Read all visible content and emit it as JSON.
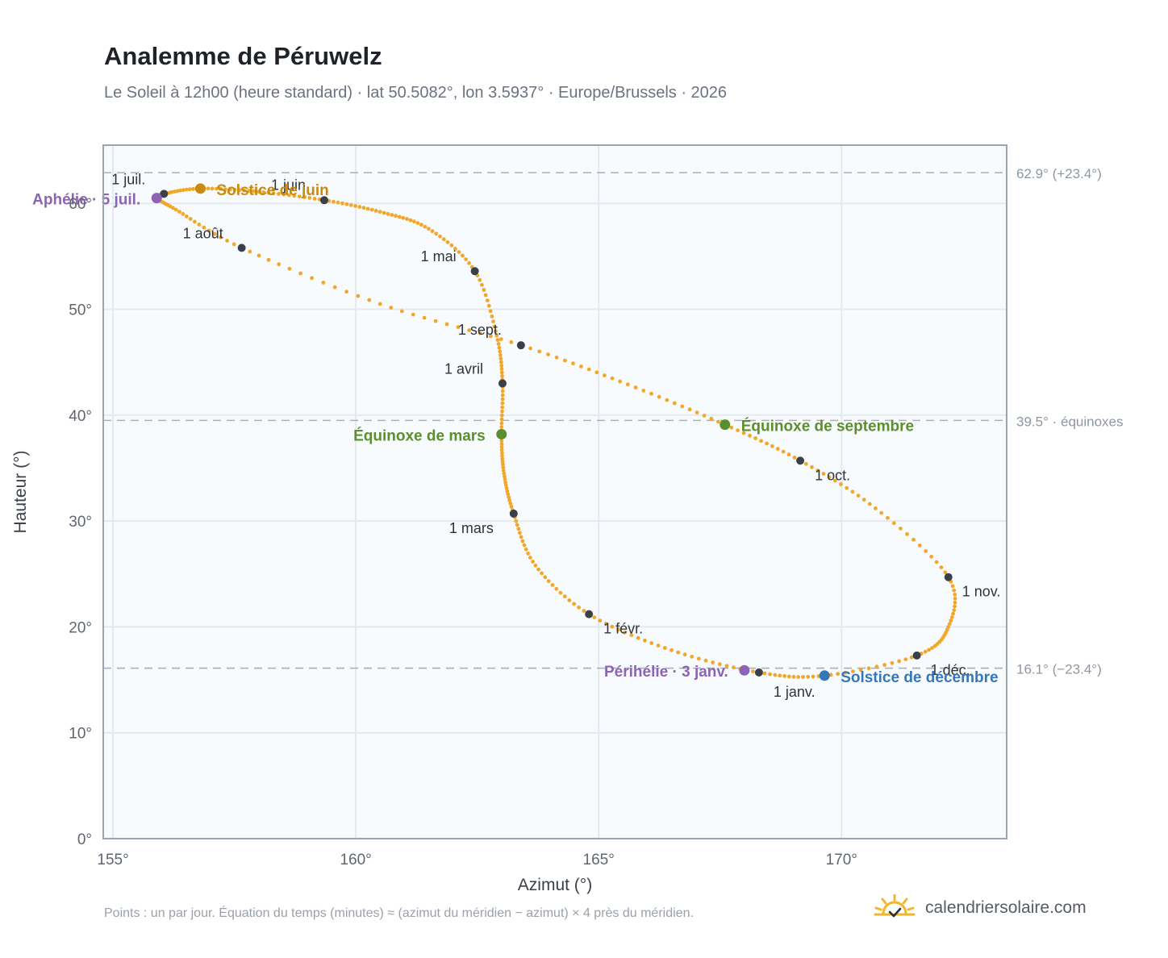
{
  "header": {
    "title": "Analemme de Péruwelz",
    "subtitle": "Le Soleil à 12h00 (heure standard) · lat 50.5082°, lon 3.5937° · Europe/Brussels · 2026"
  },
  "footer": {
    "note": "Points : un par jour. Équation du temps (minutes) ≈ (azimut du méridien − azimut) × 4 près du méridien.",
    "brand": "calendriersolaire.com"
  },
  "colors": {
    "curve": "#f2a72a",
    "month": "#3a3f4a",
    "aphelion": "#8d63b5",
    "june": "#c98a12",
    "equinox": "#5b8f2e",
    "december": "#3677b8",
    "refline": "#a8b0ba",
    "plot_bg": "#f8fbfd",
    "grid": "#e4e9ef",
    "frame": "#9aa4b0"
  },
  "chart_data": {
    "type": "scatter",
    "xlabel": "Azimut (°)",
    "ylabel": "Hauteur (°)",
    "xlim": [
      154.8,
      173.4
    ],
    "ylim": [
      0,
      65.5
    ],
    "xticks": [
      155,
      160,
      165,
      170
    ],
    "xtick_labels": [
      "155°",
      "160°",
      "165°",
      "170°"
    ],
    "yticks": [
      0,
      10,
      20,
      30,
      40,
      50,
      60
    ],
    "ytick_labels": [
      "0°",
      "10°",
      "20°",
      "30°",
      "40°",
      "50°",
      "60°"
    ],
    "grid": true,
    "reference_lines": [
      {
        "y": 62.9,
        "label": "62.9° (+23.4°)"
      },
      {
        "y": 39.5,
        "label": "39.5° · équinoxes"
      },
      {
        "y": 16.1,
        "label": "16.1° (−23.4°)"
      }
    ],
    "analemma_knots": [
      {
        "x": 168.3,
        "y": 15.7
      },
      {
        "x": 166.5,
        "y": 17.8
      },
      {
        "x": 164.8,
        "y": 21.2
      },
      {
        "x": 163.7,
        "y": 25.8
      },
      {
        "x": 163.25,
        "y": 30.7
      },
      {
        "x": 163.05,
        "y": 34.5
      },
      {
        "x": 163.0,
        "y": 38.2
      },
      {
        "x": 163.02,
        "y": 43.0
      },
      {
        "x": 162.9,
        "y": 47.5
      },
      {
        "x": 162.45,
        "y": 53.6
      },
      {
        "x": 161.5,
        "y": 57.6
      },
      {
        "x": 160.5,
        "y": 59.2
      },
      {
        "x": 159.35,
        "y": 60.3
      },
      {
        "x": 158.0,
        "y": 61.1
      },
      {
        "x": 156.8,
        "y": 61.4
      },
      {
        "x": 156.05,
        "y": 60.9
      },
      {
        "x": 155.9,
        "y": 60.5
      },
      {
        "x": 156.3,
        "y": 59.4
      },
      {
        "x": 157.65,
        "y": 55.8
      },
      {
        "x": 160.5,
        "y": 50.5
      },
      {
        "x": 163.4,
        "y": 46.6
      },
      {
        "x": 165.6,
        "y": 42.9
      },
      {
        "x": 167.6,
        "y": 39.1
      },
      {
        "x": 169.15,
        "y": 35.7
      },
      {
        "x": 170.7,
        "y": 31.2
      },
      {
        "x": 172.2,
        "y": 24.7
      },
      {
        "x": 172.2,
        "y": 20.0
      },
      {
        "x": 171.55,
        "y": 17.3
      },
      {
        "x": 169.65,
        "y": 15.4
      },
      {
        "x": 168.3,
        "y": 15.7
      }
    ],
    "month_markers": [
      {
        "label": "1 janv.",
        "x": 168.3,
        "y": 15.7,
        "dx": 18,
        "dy": 30
      },
      {
        "label": "1 févr.",
        "x": 164.8,
        "y": 21.2,
        "dx": 18,
        "dy": 24
      },
      {
        "label": "1 mars",
        "x": 163.25,
        "y": 30.7,
        "dx": -80,
        "dy": 24
      },
      {
        "label": "1 avril",
        "x": 163.02,
        "y": 43.0,
        "dx": -72,
        "dy": -12
      },
      {
        "label": "1 mai",
        "x": 162.45,
        "y": 53.6,
        "dx": -67,
        "dy": -12
      },
      {
        "label": "1 juin",
        "x": 159.35,
        "y": 60.3,
        "dx": -66,
        "dy": -13
      },
      {
        "label": "1 juil.",
        "x": 156.05,
        "y": 60.9,
        "dx": -65,
        "dy": -12
      },
      {
        "label": "1 août",
        "x": 157.65,
        "y": 55.8,
        "dx": -73,
        "dy": -12
      },
      {
        "label": "1 sept.",
        "x": 163.4,
        "y": 46.6,
        "dx": -78,
        "dy": -13
      },
      {
        "label": "1 oct.",
        "x": 169.15,
        "y": 35.7,
        "dx": 18,
        "dy": 24
      },
      {
        "label": "1 nov.",
        "x": 172.2,
        "y": 24.7,
        "dx": 17,
        "dy": 24
      },
      {
        "label": "1 déc.",
        "x": 171.55,
        "y": 17.3,
        "dx": 17,
        "dy": 24
      }
    ],
    "special_points": [
      {
        "label": "Aphélie · 5 juil.",
        "x": 155.9,
        "y": 60.5,
        "color_key": "aphelion",
        "anchor": "end",
        "dx": -20,
        "dy": 8
      },
      {
        "label": "Solstice de juin",
        "x": 156.8,
        "y": 61.4,
        "color_key": "june",
        "anchor": "start",
        "dx": 20,
        "dy": 8
      },
      {
        "label": "Équinoxe de mars",
        "x": 163.0,
        "y": 38.2,
        "color_key": "equinox",
        "anchor": "end",
        "dx": -20,
        "dy": 8
      },
      {
        "label": "Équinoxe de septembre",
        "x": 167.6,
        "y": 39.1,
        "color_key": "equinox",
        "anchor": "start",
        "dx": 20,
        "dy": 8
      },
      {
        "label": "Périhélie · 3 janv.",
        "x": 168.0,
        "y": 15.9,
        "color_key": "aphelion",
        "anchor": "end",
        "dx": -20,
        "dy": 8
      },
      {
        "label": "Solstice de décembre",
        "x": 169.65,
        "y": 15.4,
        "color_key": "december",
        "anchor": "start",
        "dx": 20,
        "dy": 8
      }
    ]
  }
}
